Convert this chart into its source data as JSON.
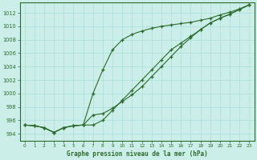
{
  "title": "Graphe pression niveau de la mer (hPa)",
  "bg_color": "#cceee8",
  "grid_color": "#aadddd",
  "line_color": "#2d6a2d",
  "xlim": [
    -0.5,
    23.5
  ],
  "ylim": [
    993.0,
    1013.5
  ],
  "yticks": [
    994,
    996,
    998,
    1000,
    1002,
    1004,
    1006,
    1008,
    1010,
    1012
  ],
  "xticks": [
    0,
    1,
    2,
    3,
    4,
    5,
    6,
    7,
    8,
    9,
    10,
    11,
    12,
    13,
    14,
    15,
    16,
    17,
    18,
    19,
    20,
    21,
    22,
    23
  ],
  "line1_x": [
    0,
    1,
    2,
    3,
    4,
    5,
    6,
    7,
    8,
    9,
    10,
    11,
    12,
    13,
    14,
    15,
    16,
    17,
    18,
    19,
    20,
    21,
    22,
    23
  ],
  "line1_y": [
    995.3,
    995.2,
    994.9,
    994.2,
    994.9,
    995.2,
    995.3,
    995.3,
    996.0,
    997.5,
    999.0,
    1000.5,
    1002.0,
    1003.5,
    1005.0,
    1006.5,
    1007.5,
    1008.5,
    1009.5,
    1010.5,
    1011.2,
    1011.8,
    1012.5,
    1013.2
  ],
  "line2_x": [
    0,
    1,
    2,
    3,
    4,
    5,
    6,
    7,
    8,
    9,
    10,
    11,
    12,
    13,
    14,
    15,
    16,
    17,
    18,
    19,
    20,
    21,
    22,
    23
  ],
  "line2_y": [
    995.3,
    995.2,
    994.9,
    994.2,
    994.9,
    995.2,
    995.3,
    1000.0,
    1003.5,
    1006.5,
    1008.0,
    1008.8,
    1009.3,
    1009.7,
    1010.0,
    1010.2,
    1010.4,
    1010.6,
    1010.9,
    1011.2,
    1011.7,
    1012.1,
    1012.6,
    1013.2
  ],
  "line3_x": [
    0,
    1,
    2,
    3,
    4,
    5,
    6,
    7,
    8,
    9,
    10,
    11,
    12,
    13,
    14,
    15,
    16,
    17,
    18,
    19,
    20,
    21,
    22,
    23
  ],
  "line3_y": [
    995.3,
    995.2,
    994.9,
    994.2,
    994.9,
    995.2,
    995.3,
    996.8,
    997.0,
    997.8,
    998.8,
    999.8,
    1001.0,
    1002.5,
    1004.0,
    1005.5,
    1007.0,
    1008.3,
    1009.5,
    1010.5,
    1011.2,
    1011.8,
    1012.5,
    1013.2
  ]
}
